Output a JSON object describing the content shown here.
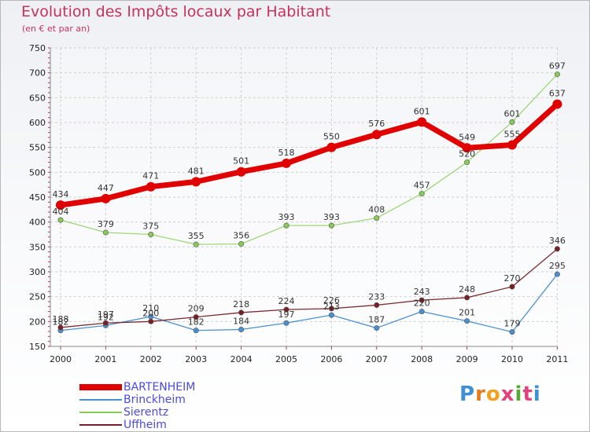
{
  "title": "Evolution des Impôts locaux par Habitant",
  "subtitle": "(en € et par an)",
  "logo_text": "Proxiti",
  "chart_data": {
    "type": "line",
    "title": "Evolution des Impôts locaux par Habitant",
    "subtitle": "(en € et par an)",
    "x": [
      "2000",
      "2001",
      "2002",
      "2003",
      "2004",
      "2005",
      "2006",
      "2007",
      "2008",
      "2009",
      "2010",
      "2011"
    ],
    "ylim": [
      150,
      750
    ],
    "yticks": [
      150,
      200,
      250,
      300,
      350,
      400,
      450,
      500,
      550,
      600,
      650,
      700,
      750
    ],
    "grid": true,
    "legend_position": "bottom-left",
    "series": [
      {
        "name": "BARTENHEIM",
        "color": "#e00000",
        "values": [
          434,
          447,
          471,
          481,
          501,
          518,
          550,
          576,
          601,
          549,
          555,
          637
        ]
      },
      {
        "name": "Brinckheim",
        "color": "#4a90d0",
        "values": [
          182,
          192,
          210,
          182,
          184,
          197,
          213,
          187,
          220,
          201,
          179,
          295
        ]
      },
      {
        "name": "Sierentz",
        "color": "#88cc55",
        "values": [
          404,
          379,
          375,
          355,
          356,
          393,
          393,
          408,
          457,
          520,
          601,
          697
        ]
      },
      {
        "name": "Uffheim",
        "color": "#7a1f25",
        "values": [
          188,
          197,
          200,
          209,
          218,
          224,
          226,
          233,
          243,
          248,
          270,
          346
        ]
      }
    ]
  }
}
